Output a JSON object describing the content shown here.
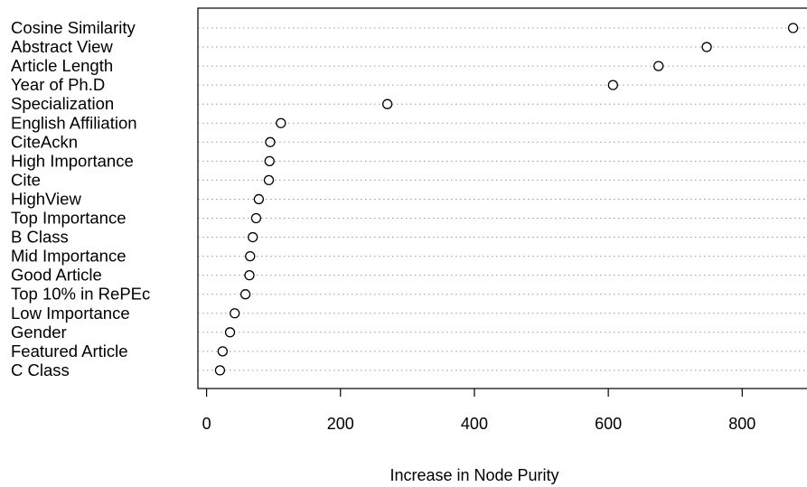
{
  "chart_data": {
    "type": "scatter",
    "variant": "dotchart",
    "title": "",
    "xlabel": "Increase in Node Purity",
    "ylabel": "",
    "xlim": [
      -15,
      900
    ],
    "xticks": [
      0,
      200,
      400,
      600,
      800
    ],
    "grid": "dotted horizontal lines",
    "legend": "none",
    "marker": "open circle",
    "categories": [
      "Cosine Similarity",
      "Abstract View",
      "Article Length",
      "Year of Ph.D",
      "Specialization",
      "English Affiliation",
      "CiteAckn",
      "High Importance",
      "Cite",
      "HighView",
      "Top Importance",
      "B Class",
      "Mid Importance",
      "Good Article",
      "Top 10% in RePEc",
      "Low Importance",
      "Gender",
      "Featured Article",
      "C Class"
    ],
    "values": [
      876,
      747,
      675,
      607,
      270,
      111,
      95,
      94,
      93,
      78,
      74,
      69,
      65,
      64,
      58,
      42,
      35,
      24,
      20
    ]
  }
}
